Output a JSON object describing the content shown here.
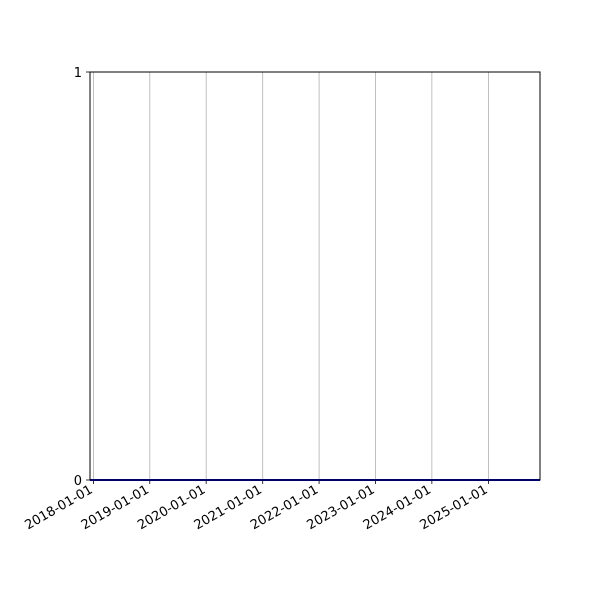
{
  "chart_data": {
    "type": "line",
    "title": "",
    "xlabel": "",
    "ylabel": "",
    "xlim": [
      "2017-12-10",
      "2025-12-01"
    ],
    "ylim": [
      0,
      1
    ],
    "grid": "x-major-vertical",
    "x_ticks": [
      "2018-01-01",
      "2019-01-01",
      "2020-01-01",
      "2021-01-01",
      "2022-01-01",
      "2023-01-01",
      "2024-01-01",
      "2025-01-01"
    ],
    "y_ticks": [
      "0",
      "1"
    ],
    "series": [
      {
        "x": [
          "2017-12-10",
          "2025-12-01"
        ],
        "y": [
          0,
          0
        ],
        "color": "#0000cc"
      }
    ],
    "colors": {
      "grid": "#b0b0b0",
      "axis": "#000000"
    }
  }
}
